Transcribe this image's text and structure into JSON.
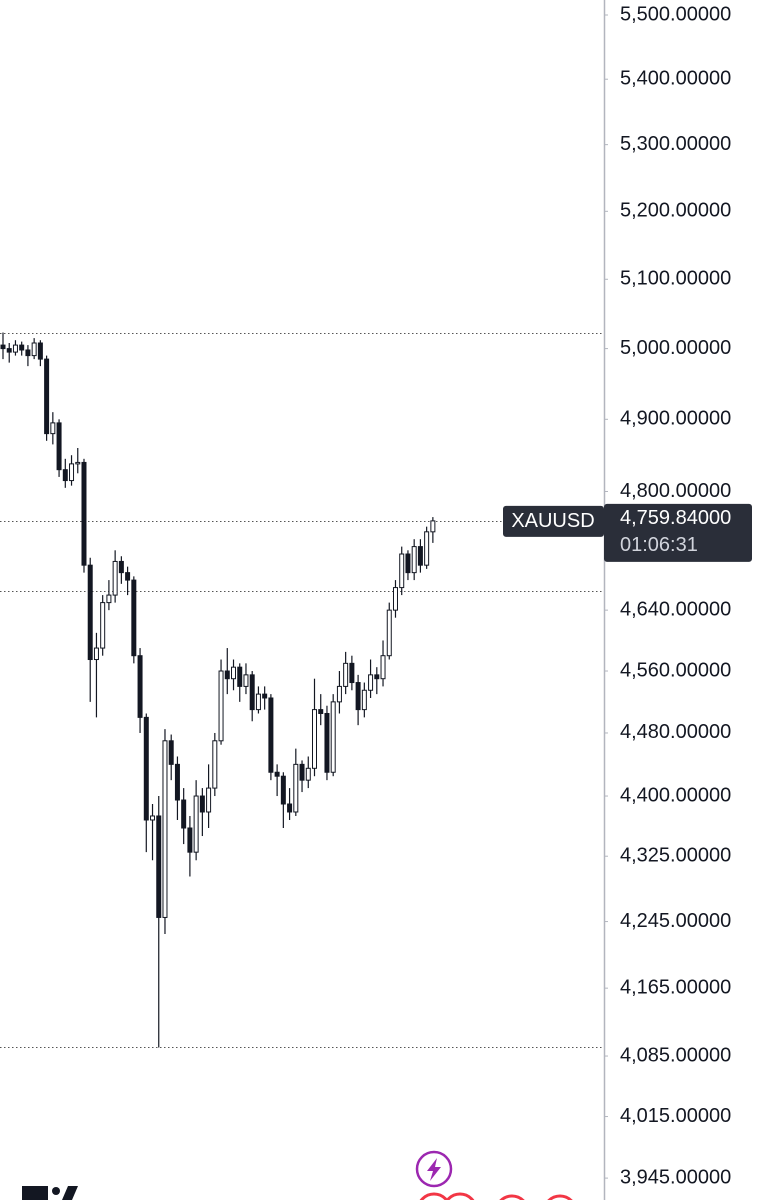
{
  "chart_data": {
    "type": "candlestick",
    "symbol": "XAUUSD",
    "last_price": {
      "value": 4759.84,
      "label": "4,759.84000"
    },
    "countdown": "01:06:31",
    "log_scale": true,
    "up_color": "#ffffff",
    "down_color": "#131722",
    "outline_color": "#131722",
    "ylim": [
      3920.4,
      5523.6
    ],
    "yticks": [
      {
        "value": 5500,
        "label": "5,500.00000"
      },
      {
        "value": 5400,
        "label": "5,400.00000"
      },
      {
        "value": 5300,
        "label": "5,300.00000"
      },
      {
        "value": 5200,
        "label": "5,200.00000"
      },
      {
        "value": 5100,
        "label": "5,100.00000"
      },
      {
        "value": 5000,
        "label": "5,000.00000"
      },
      {
        "value": 4900,
        "label": "4,900.00000"
      },
      {
        "value": 4800,
        "label": "4,800.00000"
      },
      {
        "value": 4640,
        "label": "4,640.00000"
      },
      {
        "value": 4560,
        "label": "4,560.00000"
      },
      {
        "value": 4480,
        "label": "4,480.00000"
      },
      {
        "value": 4400,
        "label": "4,400.00000"
      },
      {
        "value": 4325,
        "label": "4,325.00000"
      },
      {
        "value": 4245,
        "label": "4,245.00000"
      },
      {
        "value": 4165,
        "label": "4,165.00000"
      },
      {
        "value": 4085,
        "label": "4,085.00000"
      },
      {
        "value": 4015,
        "label": "4,015.00000"
      },
      {
        "value": 3945,
        "label": "3,945.00000"
      }
    ],
    "reference_lines": [
      5023,
      4759.84,
      4666,
      4095
    ],
    "open": [
      5005,
      5000,
      4995,
      5005,
      4998,
      4990,
      5008,
      4985,
      4880,
      4895,
      4830,
      4815,
      4838,
      4840,
      4700,
      4575,
      4590,
      4650,
      4660,
      4705,
      4690,
      4680,
      4580,
      4500,
      4370,
      4375,
      4250,
      4470,
      4440,
      4395,
      4360,
      4330,
      4400,
      4380,
      4410,
      4470,
      4560,
      4550,
      4565,
      4540,
      4555,
      4510,
      4530,
      4525,
      4430,
      4425,
      4390,
      4380,
      4440,
      4420,
      4435,
      4510,
      4505,
      4430,
      4520,
      4540,
      4570,
      4545,
      4510,
      4535,
      4555,
      4550,
      4580,
      4640,
      4670,
      4715,
      4690,
      4725,
      4700,
      4745
    ],
    "high": [
      5023,
      5008,
      5012,
      5010,
      5005,
      5015,
      5012,
      4990,
      4910,
      4900,
      4845,
      4850,
      4860,
      4845,
      4710,
      4610,
      4660,
      4680,
      4720,
      4712,
      4698,
      4685,
      4590,
      4505,
      4390,
      4400,
      4485,
      4478,
      4450,
      4410,
      4375,
      4420,
      4410,
      4440,
      4480,
      4575,
      4590,
      4575,
      4570,
      4570,
      4560,
      4540,
      4540,
      4530,
      4440,
      4430,
      4410,
      4460,
      4445,
      4450,
      4550,
      4530,
      4515,
      4530,
      4560,
      4585,
      4580,
      4555,
      4545,
      4575,
      4565,
      4600,
      4650,
      4680,
      4725,
      4720,
      4735,
      4735,
      4752,
      4765
    ],
    "low": [
      4985,
      4980,
      4990,
      4990,
      4975,
      4985,
      4975,
      4870,
      4865,
      4820,
      4805,
      4808,
      4825,
      4690,
      4520,
      4500,
      4580,
      4640,
      4650,
      4675,
      4660,
      4570,
      4480,
      4330,
      4320,
      4095,
      4230,
      4420,
      4370,
      4340,
      4300,
      4320,
      4350,
      4360,
      4400,
      4465,
      4530,
      4535,
      4520,
      4530,
      4495,
      4505,
      4510,
      4420,
      4400,
      4360,
      4370,
      4375,
      4405,
      4410,
      4425,
      4490,
      4420,
      4425,
      4505,
      4530,
      4535,
      4490,
      4500,
      4525,
      4530,
      4540,
      4575,
      4630,
      4660,
      4680,
      4680,
      4690,
      4695,
      4730
    ],
    "close": [
      5000,
      4995,
      5005,
      4998,
      4990,
      5008,
      4985,
      4880,
      4895,
      4830,
      4815,
      4838,
      4840,
      4700,
      4575,
      4590,
      4650,
      4660,
      4705,
      4690,
      4680,
      4580,
      4500,
      4370,
      4375,
      4250,
      4470,
      4440,
      4395,
      4360,
      4330,
      4400,
      4380,
      4410,
      4470,
      4560,
      4550,
      4565,
      4540,
      4555,
      4510,
      4530,
      4525,
      4430,
      4425,
      4390,
      4380,
      4440,
      4420,
      4435,
      4510,
      4505,
      4430,
      4520,
      4540,
      4570,
      4545,
      4510,
      4535,
      4555,
      4550,
      4580,
      4640,
      4670,
      4715,
      4690,
      4725,
      4700,
      4745,
      4759.84
    ]
  }
}
